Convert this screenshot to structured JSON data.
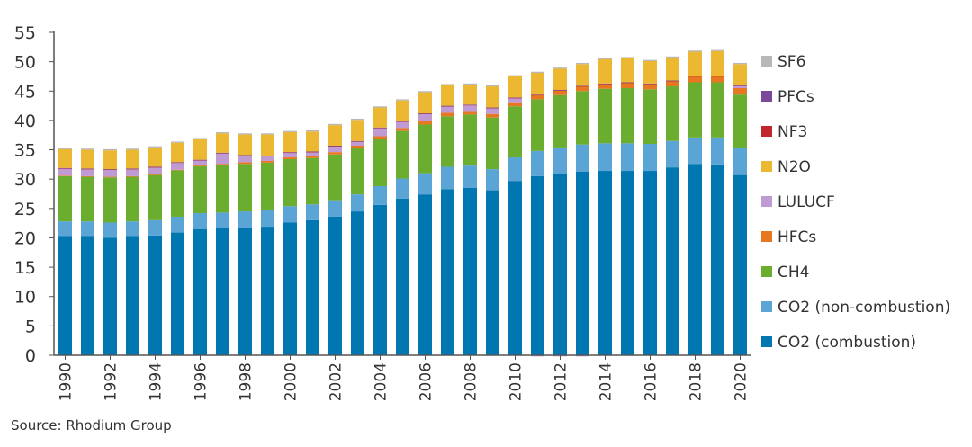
{
  "chart_data": {
    "type": "bar",
    "stacked": true,
    "title": "",
    "xlabel": "",
    "ylabel": "",
    "ylim": [
      0,
      55
    ],
    "yticks": [
      0,
      5,
      10,
      15,
      20,
      25,
      30,
      35,
      40,
      45,
      50,
      55
    ],
    "grid": false,
    "legend_position": "right",
    "categories": [
      "1990",
      "1991",
      "1992",
      "1993",
      "1994",
      "1995",
      "1996",
      "1997",
      "1998",
      "1999",
      "2000",
      "2001",
      "2002",
      "2003",
      "2004",
      "2005",
      "2006",
      "2007",
      "2008",
      "2009",
      "2010",
      "2011",
      "2012",
      "2013",
      "2014",
      "2015",
      "2016",
      "2017",
      "2018",
      "2019",
      "2020"
    ],
    "xtick_labels": [
      "1990",
      "1992",
      "1994",
      "1996",
      "1998",
      "2000",
      "2002",
      "2004",
      "2006",
      "2008",
      "2010",
      "2012",
      "2014",
      "2016",
      "2018",
      "2020"
    ],
    "series": [
      {
        "name": "CO2 (combustion)",
        "color": "#0077b0",
        "values": [
          20.3,
          20.3,
          20.0,
          20.3,
          20.4,
          20.9,
          21.5,
          21.6,
          21.8,
          21.9,
          22.6,
          23.0,
          23.6,
          24.5,
          25.6,
          26.7,
          27.4,
          28.3,
          28.5,
          28.1,
          29.7,
          30.5,
          30.9,
          31.3,
          31.4,
          31.4,
          31.4,
          32.0,
          32.6,
          32.5,
          30.7
        ]
      },
      {
        "name": "CO2 (non-combustion)",
        "color": "#5ba4d6",
        "values": [
          2.5,
          2.5,
          2.6,
          2.5,
          2.6,
          2.7,
          2.7,
          2.7,
          2.7,
          2.8,
          2.8,
          2.7,
          2.8,
          2.9,
          3.2,
          3.4,
          3.6,
          3.8,
          3.8,
          3.6,
          4.0,
          4.3,
          4.5,
          4.6,
          4.7,
          4.7,
          4.6,
          4.5,
          4.5,
          4.6,
          4.6
        ]
      },
      {
        "name": "CH4",
        "color": "#6aad2f",
        "values": [
          7.7,
          7.6,
          7.7,
          7.6,
          7.7,
          7.9,
          8.0,
          8.1,
          8.1,
          8.1,
          8.0,
          7.9,
          7.8,
          7.9,
          8.0,
          8.1,
          8.3,
          8.6,
          8.7,
          8.8,
          8.7,
          8.8,
          8.9,
          9.1,
          9.3,
          9.4,
          9.3,
          9.3,
          9.4,
          9.4,
          9.1
        ]
      },
      {
        "name": "HFCs",
        "color": "#e87722",
        "values": [
          0.1,
          0.1,
          0.1,
          0.1,
          0.1,
          0.1,
          0.2,
          0.2,
          0.3,
          0.3,
          0.3,
          0.3,
          0.4,
          0.4,
          0.5,
          0.5,
          0.6,
          0.6,
          0.6,
          0.6,
          0.7,
          0.7,
          0.8,
          0.8,
          0.8,
          0.9,
          0.9,
          0.9,
          1.0,
          1.0,
          1.1
        ]
      },
      {
        "name": "LULUCF",
        "color": "#c09ad3",
        "values": [
          1.2,
          1.2,
          1.2,
          1.2,
          1.2,
          1.2,
          0.8,
          1.8,
          1.1,
          0.8,
          0.8,
          0.7,
          1.0,
          0.7,
          1.4,
          1.1,
          1.2,
          1.1,
          1.0,
          1.0,
          0.7,
          0.0,
          0.0,
          0.0,
          0.0,
          0.0,
          0.0,
          0.0,
          0.0,
          0.0,
          0.4
        ]
      },
      {
        "name": "NF3",
        "color": "#c0282d",
        "values": [
          0.05,
          0.05,
          0.05,
          0.05,
          0.05,
          0.05,
          0.05,
          0.05,
          0.05,
          0.05,
          0.05,
          0.05,
          0.05,
          0.05,
          0.05,
          0.05,
          0.05,
          0.05,
          0.05,
          0.05,
          0.05,
          0.05,
          0.05,
          0.05,
          0.05,
          0.05,
          0.05,
          0.05,
          0.05,
          0.05,
          0.05
        ]
      },
      {
        "name": "PFCs",
        "color": "#7a4a98",
        "values": [
          0.05,
          0.05,
          0.05,
          0.05,
          0.05,
          0.05,
          0.05,
          0.05,
          0.05,
          0.05,
          0.05,
          0.05,
          0.05,
          0.05,
          0.05,
          0.05,
          0.05,
          0.05,
          0.05,
          0.05,
          0.05,
          0.05,
          0.05,
          0.05,
          0.05,
          0.05,
          0.05,
          0.05,
          0.05,
          0.05,
          0.05
        ]
      },
      {
        "name": "N2O",
        "color": "#ecb731",
        "values": [
          3.2,
          3.2,
          3.2,
          3.2,
          3.3,
          3.3,
          3.5,
          3.3,
          3.5,
          3.6,
          3.4,
          3.4,
          3.5,
          3.6,
          3.4,
          3.5,
          3.6,
          3.5,
          3.4,
          3.6,
          3.6,
          3.7,
          3.6,
          3.7,
          4.1,
          4.1,
          3.8,
          3.9,
          4.1,
          4.2,
          3.6
        ]
      },
      {
        "name": "SF6",
        "color": "#b8b8b8",
        "values": [
          0.2,
          0.2,
          0.2,
          0.2,
          0.2,
          0.2,
          0.2,
          0.2,
          0.2,
          0.2,
          0.2,
          0.2,
          0.2,
          0.2,
          0.2,
          0.2,
          0.2,
          0.2,
          0.2,
          0.2,
          0.2,
          0.2,
          0.2,
          0.2,
          0.2,
          0.2,
          0.2,
          0.2,
          0.2,
          0.2,
          0.2
        ]
      }
    ],
    "negative_series": {
      "name": "LULUCF",
      "values": [
        0,
        0,
        0,
        0,
        0,
        0,
        0,
        0,
        0,
        0,
        0,
        0,
        0,
        0,
        0,
        0,
        0,
        0,
        0,
        0,
        0,
        -0.2,
        -0.2,
        -0.2,
        0,
        0,
        0,
        0,
        0,
        0,
        0
      ]
    },
    "legend_order": [
      "SF6",
      "PFCs",
      "NF3",
      "N2O",
      "LULUCF",
      "HFCs",
      "CH4",
      "CO2 (non-combustion)",
      "CO2 (combustion)"
    ]
  },
  "source": "Source: Rhodium Group"
}
